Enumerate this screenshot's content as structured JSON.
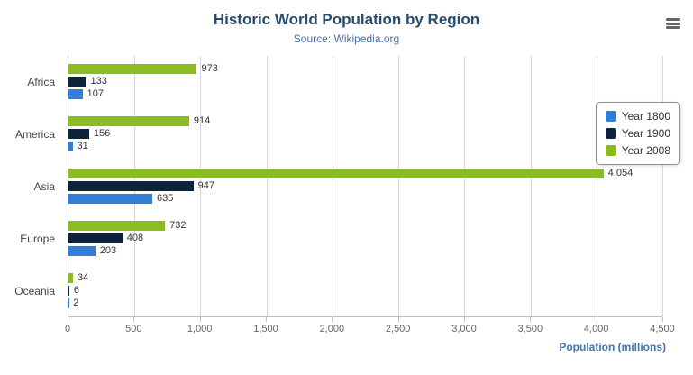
{
  "header": {
    "title": "Historic World Population by Region",
    "subtitle": "Source: Wikipedia.org"
  },
  "export_menu": {
    "icon": "hamburger-menu-icon"
  },
  "chart_data": {
    "type": "bar",
    "orientation": "horizontal",
    "title": "Historic World Population by Region",
    "subtitle": "Source: Wikipedia.org",
    "categories": [
      "Africa",
      "America",
      "Asia",
      "Europe",
      "Oceania"
    ],
    "series": [
      {
        "name": "Year 1800",
        "color": "#2f7ed8",
        "values": [
          107,
          31,
          635,
          203,
          2
        ]
      },
      {
        "name": "Year 1900",
        "color": "#0d233a",
        "values": [
          133,
          156,
          947,
          408,
          6
        ]
      },
      {
        "name": "Year 2008",
        "color": "#8bbc21",
        "values": [
          973,
          914,
          4054,
          732,
          34
        ]
      }
    ],
    "bar_order_top_to_bottom": [
      "Year 2008",
      "Year 1900",
      "Year 1800"
    ],
    "xlabel": "Population (millions)",
    "ylabel": "",
    "xlim": [
      0,
      4500
    ],
    "xticks": [
      0,
      500,
      1000,
      1500,
      2000,
      2500,
      3000,
      3500,
      4000,
      4500
    ],
    "grid": true,
    "legend_position": "right",
    "data_labels": true
  }
}
